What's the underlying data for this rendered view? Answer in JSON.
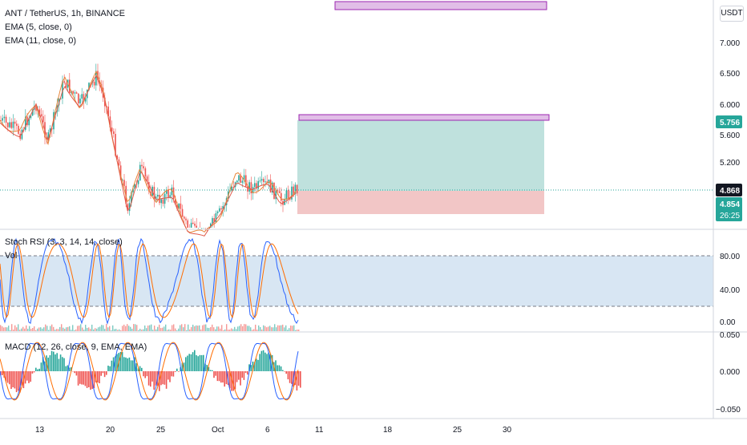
{
  "symbol": {
    "title": "ANT / TetherUS, 1h, BINANCE",
    "indicators": [
      "EMA (5, close, 0)",
      "EMA (11, close, 0)"
    ]
  },
  "currency": "USDT",
  "price_axis": {
    "ticks": [
      "7.000",
      "6.500",
      "6.000",
      "5.600",
      "5.200"
    ],
    "target_label": "5.756",
    "last_price_label": "4.868",
    "current_label": "4.854",
    "countdown_label": "26:25"
  },
  "stoch_panel": {
    "title": "Stoch RSI (3, 3, 14, 14, close)",
    "sub": "Vol",
    "ticks": [
      "80.00",
      "40.00",
      "0.00"
    ]
  },
  "macd_panel": {
    "title": "MACD (12, 26, close, 9, EMA, EMA)",
    "ticks": [
      "0.050",
      "0.000",
      "−0.050"
    ]
  },
  "time_axis": {
    "ticks": [
      "13",
      "20",
      "25",
      "Oct",
      "6",
      "11",
      "18",
      "25",
      "30"
    ]
  },
  "colors": {
    "up": "#26a69a",
    "down": "#ef5350",
    "ema_fast": "#e8863a",
    "ema_slow": "#e05a4a",
    "stoch_k": "#2962ff",
    "stoch_d": "#ff6d00",
    "profit_zone": "#bfe1dd",
    "loss_zone": "#f2c6c6",
    "box_fill": "#e1bee7",
    "box_border": "#9c27b0",
    "stoch_band": "#d8e6f3",
    "target_pill": "#26a69a",
    "last_pill": "#131722",
    "current_pill": "#26a69a"
  }
}
